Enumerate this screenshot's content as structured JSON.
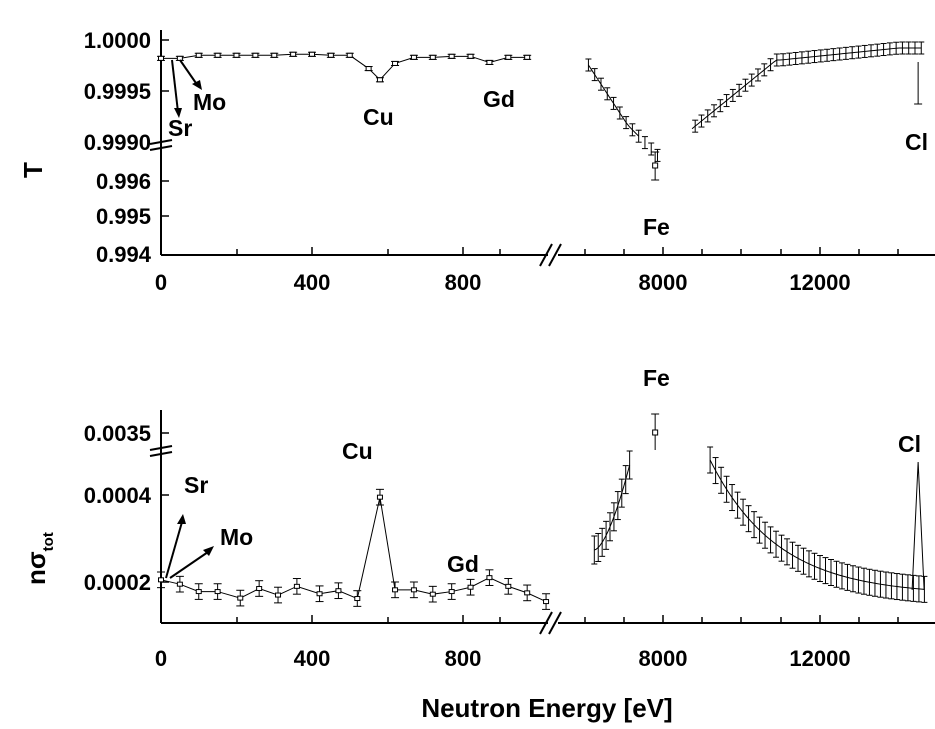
{
  "figure": {
    "x_axis_title": "Neutron Energy [eV]",
    "top_y_title": "T",
    "bottom_y_title_main": "nσ",
    "bottom_y_title_sub": "tot"
  },
  "chart_data": [
    {
      "type": "line",
      "panel": "top",
      "title": "",
      "ylabel": "T",
      "xlabel": "",
      "x_segments": [
        {
          "xlim": [
            0,
            1000
          ],
          "ticks": [
            0,
            400,
            800
          ],
          "tick_labels": [
            "0",
            "400",
            "800"
          ]
        },
        {
          "xlim": [
            6000,
            14700
          ],
          "ticks": [
            8000,
            12000
          ],
          "tick_labels": [
            "8000",
            "12000"
          ]
        }
      ],
      "y_segments": [
        {
          "ylim": [
            0.999,
            1.0
          ],
          "ticks": [
            0.999,
            0.9995,
            1.0
          ],
          "tick_labels": [
            "0.9990",
            "0.9995",
            "1.0000"
          ]
        },
        {
          "ylim": [
            0.994,
            0.9965
          ],
          "ticks": [
            0.994,
            0.995,
            0.996
          ],
          "tick_labels": [
            "0.994",
            "0.995",
            "0.996"
          ]
        }
      ],
      "series": [
        {
          "segment": 0,
          "x": [
            0,
            50,
            100,
            150,
            200,
            250,
            300,
            350,
            400,
            450,
            500,
            550,
            580,
            620,
            670,
            720,
            770,
            820,
            870,
            920,
            970
          ],
          "y": [
            0.99982,
            0.99982,
            0.99985,
            0.99985,
            0.99985,
            0.99985,
            0.99985,
            0.99986,
            0.99986,
            0.99985,
            0.99985,
            0.99972,
            0.99961,
            0.99977,
            0.99983,
            0.99983,
            0.99984,
            0.99984,
            0.99978,
            0.99983,
            0.99983
          ],
          "err": 2e-05
        }
      ],
      "annotations": [
        {
          "text": "Sr"
        },
        {
          "text": "Mo"
        },
        {
          "text": "Cu"
        },
        {
          "text": "Gd"
        },
        {
          "text": "Fe"
        },
        {
          "text": "Cl"
        }
      ]
    },
    {
      "type": "line",
      "panel": "bottom",
      "title": "",
      "ylabel": "nσtot",
      "xlabel": "Neutron Energy [eV]",
      "x_segments": [
        {
          "xlim": [
            0,
            1000
          ],
          "ticks": [
            0,
            400,
            800
          ],
          "tick_labels": [
            "0",
            "400",
            "800"
          ]
        },
        {
          "xlim": [
            6000,
            14700
          ],
          "ticks": [
            8000,
            12000
          ],
          "tick_labels": [
            "8000",
            "12000"
          ]
        }
      ],
      "y_segments": [
        {
          "ylim": [
            0.00015,
            0.00048
          ],
          "ticks": [
            0.0002,
            0.0004
          ],
          "tick_labels": [
            "0.0002",
            "0.0004"
          ]
        },
        {
          "ylim": [
            0.0032,
            0.0037
          ],
          "ticks": [
            0.0035
          ],
          "tick_labels": [
            "0.0035"
          ]
        }
      ],
      "series": [
        {
          "segment": 0,
          "x": [
            0,
            50,
            100,
            150,
            210,
            260,
            310,
            360,
            420,
            470,
            520,
            580,
            620,
            670,
            720,
            770,
            820,
            870,
            920,
            970,
            1020
          ],
          "y": [
            0.000205,
            0.000195,
            0.000178,
            0.000178,
            0.000163,
            0.000185,
            0.00017,
            0.00019,
            0.000173,
            0.00018,
            0.000162,
            0.000395,
            0.000182,
            0.000182,
            0.000172,
            0.000178,
            0.000188,
            0.00021,
            0.00019,
            0.000175,
            0.000155
          ],
          "err": 1.8e-05
        }
      ],
      "annotations": [
        {
          "text": "Sr"
        },
        {
          "text": "Mo"
        },
        {
          "text": "Cu"
        },
        {
          "text": "Gd"
        },
        {
          "text": "Fe"
        },
        {
          "text": "Cl"
        }
      ]
    }
  ]
}
